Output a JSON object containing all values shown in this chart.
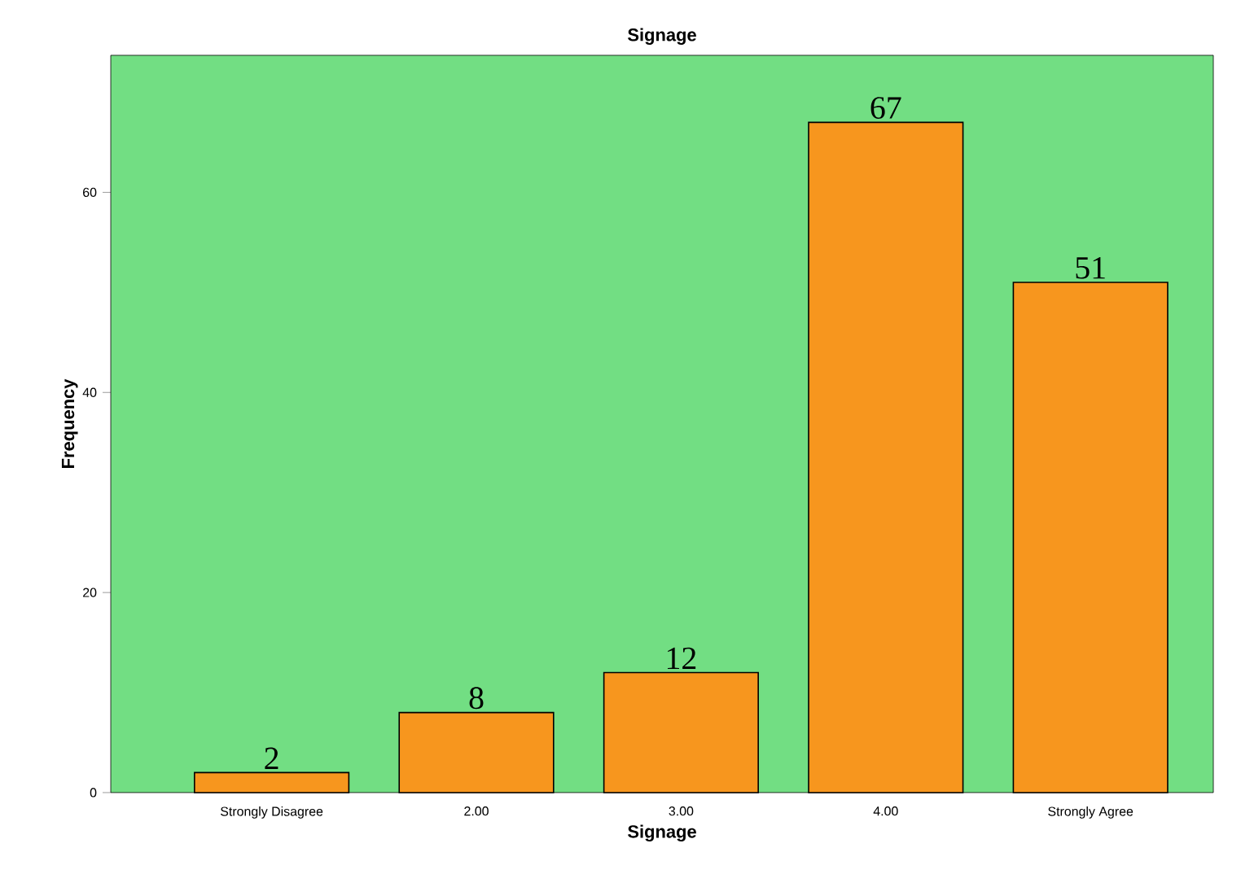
{
  "chart_data": {
    "type": "bar",
    "title": "Signage",
    "xlabel": "Signage",
    "ylabel": "Frequency",
    "categories": [
      "Strongly Disagree",
      "2.00",
      "3.00",
      "4.00",
      "Strongly Agree"
    ],
    "values": [
      2,
      8,
      12,
      67,
      51
    ],
    "color": "#f7961e",
    "ylim": [
      0,
      73.7
    ],
    "yticks": [
      0,
      20,
      40,
      60
    ],
    "data_labels": true
  }
}
